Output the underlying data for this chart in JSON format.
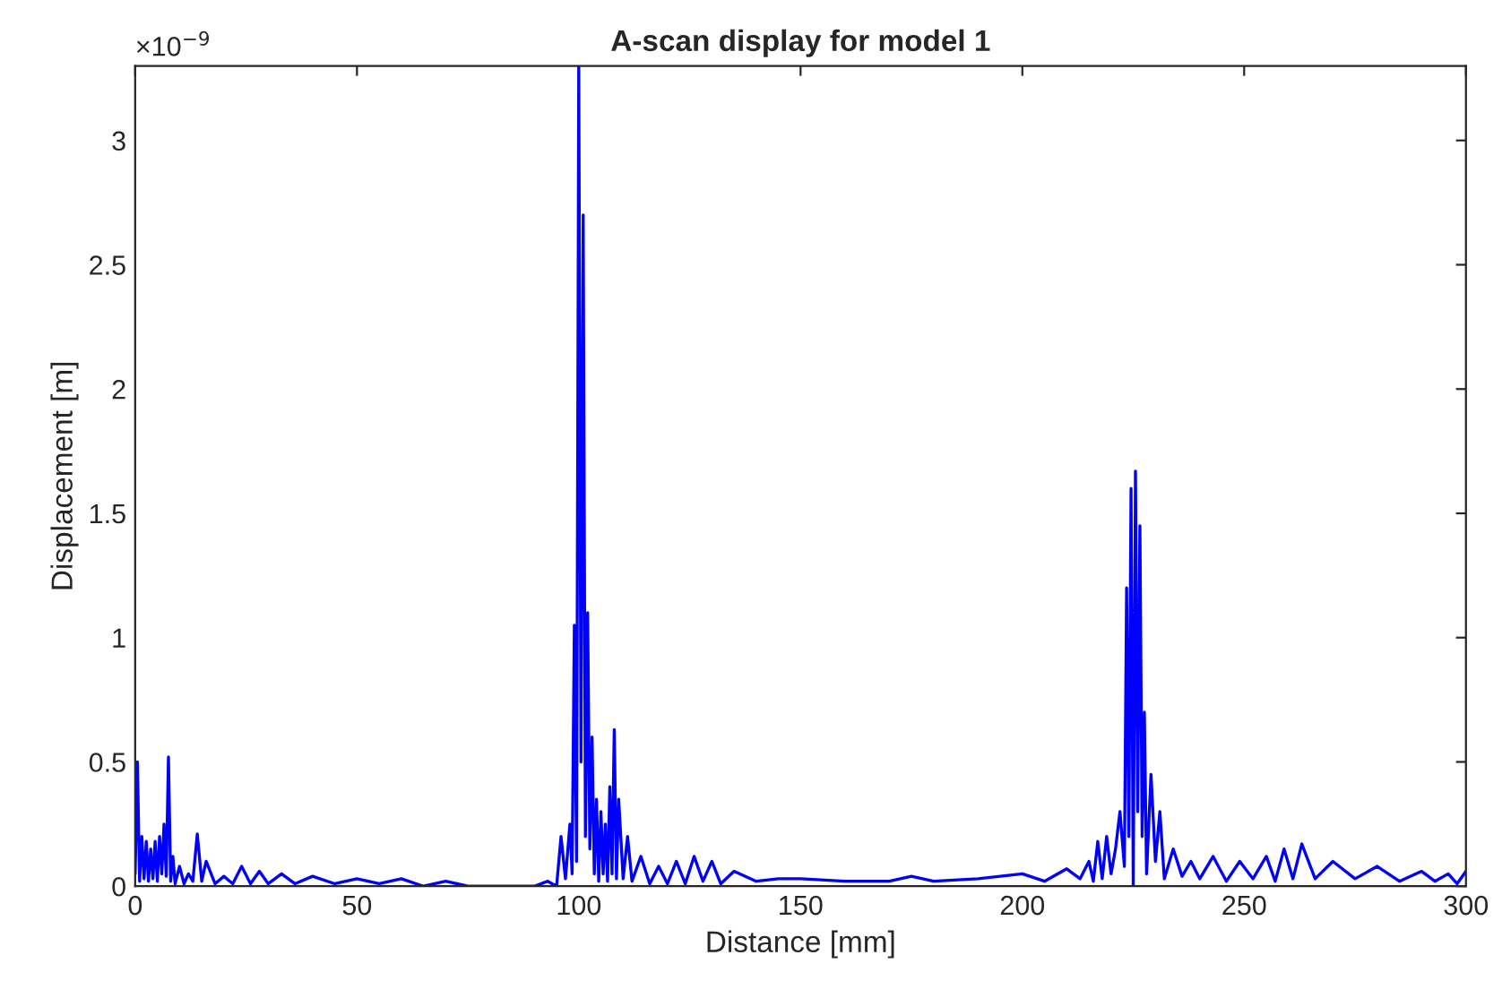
{
  "chart_data": {
    "type": "line",
    "title": "A-scan display for model 1",
    "xlabel": "Distance [mm]",
    "ylabel": "Displacement [m]",
    "annotations": [
      "×10$^{−9}$"
    ],
    "xlim": [
      0,
      300
    ],
    "ylim": [
      0,
      3.3
    ],
    "xticks": [
      0,
      50,
      100,
      150,
      200,
      250,
      300
    ],
    "yticks": [
      0,
      0.5,
      1,
      1.5,
      2,
      2.5,
      3
    ],
    "grid": false,
    "line_style": "solid",
    "marker": "none",
    "series": [
      {
        "color": "#0000ff",
        "x": [
          0,
          0.5,
          1,
          1.5,
          2,
          2.5,
          3,
          3.5,
          4,
          4.5,
          5,
          5.5,
          6,
          6.5,
          7,
          7.5,
          8,
          8.5,
          9,
          10,
          11,
          12,
          13,
          14,
          15,
          16,
          18,
          20,
          22,
          24,
          26,
          28,
          30,
          33,
          36,
          40,
          45,
          50,
          55,
          60,
          65,
          70,
          75,
          80,
          85,
          90,
          93,
          95,
          96,
          97,
          98,
          98.5,
          99,
          99.5,
          100,
          100.5,
          101,
          101.5,
          102,
          102.5,
          103,
          103.5,
          104,
          104.5,
          105,
          105.5,
          106,
          106.5,
          107,
          107.5,
          108,
          108.5,
          109,
          110,
          111,
          112,
          114,
          116,
          118,
          120,
          122,
          124,
          126,
          128,
          130,
          132,
          135,
          140,
          145,
          150,
          160,
          170,
          175,
          180,
          190,
          200,
          205,
          210,
          213,
          215,
          216,
          217,
          218,
          219,
          220,
          221,
          222,
          223,
          223.5,
          224,
          224.5,
          225,
          225.5,
          226,
          226.5,
          227,
          227.5,
          228,
          229,
          230,
          231,
          232,
          234,
          236,
          238,
          240,
          243,
          246,
          249,
          252,
          255,
          257,
          259,
          261,
          263,
          266,
          270,
          275,
          280,
          285,
          290,
          293,
          296,
          298,
          300
        ],
        "values": [
          0.05,
          0.5,
          0.02,
          0.2,
          0.03,
          0.18,
          0.02,
          0.15,
          0.03,
          0.18,
          0.02,
          0.2,
          0.05,
          0.25,
          0.04,
          0.52,
          0.02,
          0.12,
          0.01,
          0.08,
          0.01,
          0.05,
          0.02,
          0.21,
          0.02,
          0.1,
          0.01,
          0.04,
          0.01,
          0.08,
          0.01,
          0.06,
          0.01,
          0.05,
          0.01,
          0.04,
          0.01,
          0.03,
          0.01,
          0.03,
          0.0,
          0.02,
          0.0,
          0.0,
          0.0,
          0.0,
          0.02,
          0.0,
          0.2,
          0.03,
          0.25,
          0.05,
          1.05,
          0.1,
          3.3,
          0.5,
          2.7,
          0.2,
          1.1,
          0.15,
          0.6,
          0.05,
          0.35,
          0.02,
          0.3,
          0.05,
          0.25,
          0.02,
          0.4,
          0.05,
          0.63,
          0.03,
          0.35,
          0.03,
          0.2,
          0.02,
          0.12,
          0.01,
          0.08,
          0.01,
          0.1,
          0.01,
          0.12,
          0.02,
          0.1,
          0.01,
          0.06,
          0.02,
          0.03,
          0.03,
          0.02,
          0.02,
          0.04,
          0.02,
          0.03,
          0.05,
          0.02,
          0.07,
          0.03,
          0.1,
          0.02,
          0.18,
          0.03,
          0.2,
          0.05,
          0.15,
          0.3,
          0.08,
          1.2,
          0.2,
          1.6,
          0.0,
          1.67,
          0.3,
          1.45,
          0.2,
          0.7,
          0.05,
          0.45,
          0.1,
          0.3,
          0.03,
          0.15,
          0.04,
          0.1,
          0.03,
          0.12,
          0.02,
          0.1,
          0.03,
          0.12,
          0.02,
          0.15,
          0.03,
          0.17,
          0.03,
          0.1,
          0.03,
          0.08,
          0.02,
          0.06,
          0.02,
          0.05,
          0.01,
          0.06
        ]
      }
    ]
  }
}
